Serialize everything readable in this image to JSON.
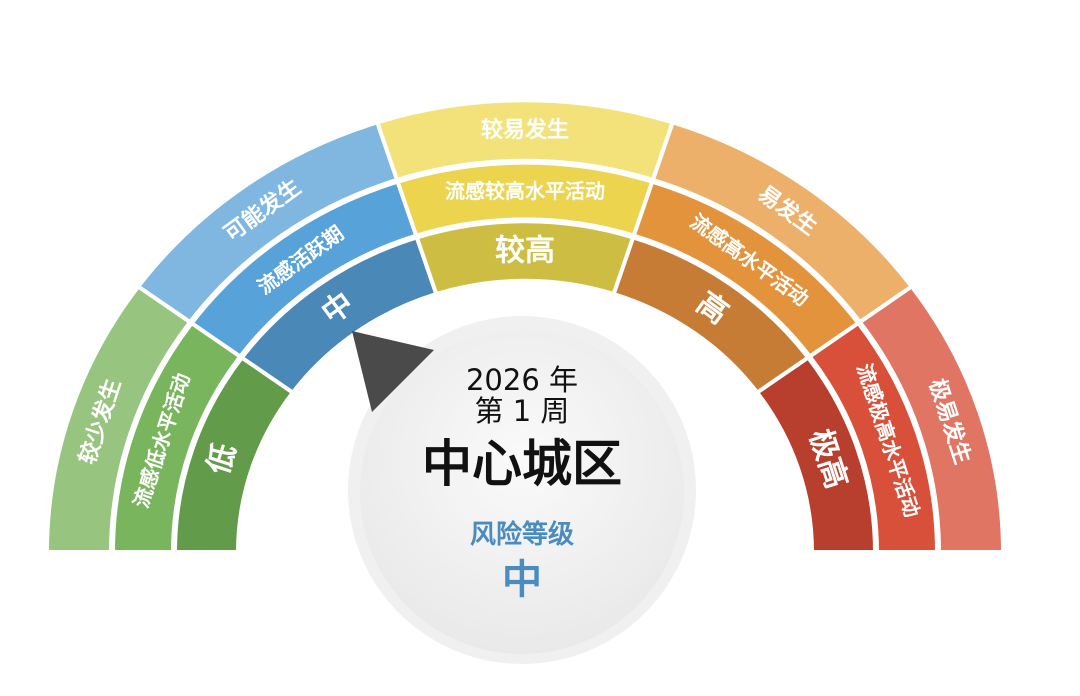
{
  "levels": [
    {
      "outer": "较少发生",
      "middle": "流感低水平活动",
      "inner": "低",
      "colors": [
        "#97c47f",
        "#79b55c",
        "#629c4a"
      ]
    },
    {
      "outer": "可能发生",
      "middle": "流感活跃期",
      "inner": "中",
      "colors": [
        "#7fb7e0",
        "#57a2d8",
        "#4a88b8"
      ]
    },
    {
      "outer": "较易发生",
      "middle": "流感较高水平活动",
      "inner": "较高",
      "colors": [
        "#f3e27a",
        "#ecd44f",
        "#cdbd42"
      ]
    },
    {
      "outer": "易发生",
      "middle": "流感高水平活动",
      "inner": "高",
      "colors": [
        "#ecb06a",
        "#e4933d",
        "#c67c34"
      ]
    },
    {
      "outer": "极易发生",
      "middle": "流感极高水平活动",
      "inner": "极高",
      "colors": [
        "#e07563",
        "#d9503a",
        "#b83f2e"
      ]
    }
  ],
  "current_level": "中",
  "center": {
    "year": "2026 年",
    "week": "第 1 周",
    "region": "中心城区",
    "risk_label": "风险等级",
    "risk_value": "中",
    "risk_color": "#4a8cc0"
  },
  "pointer_color": "#4a4a4a"
}
